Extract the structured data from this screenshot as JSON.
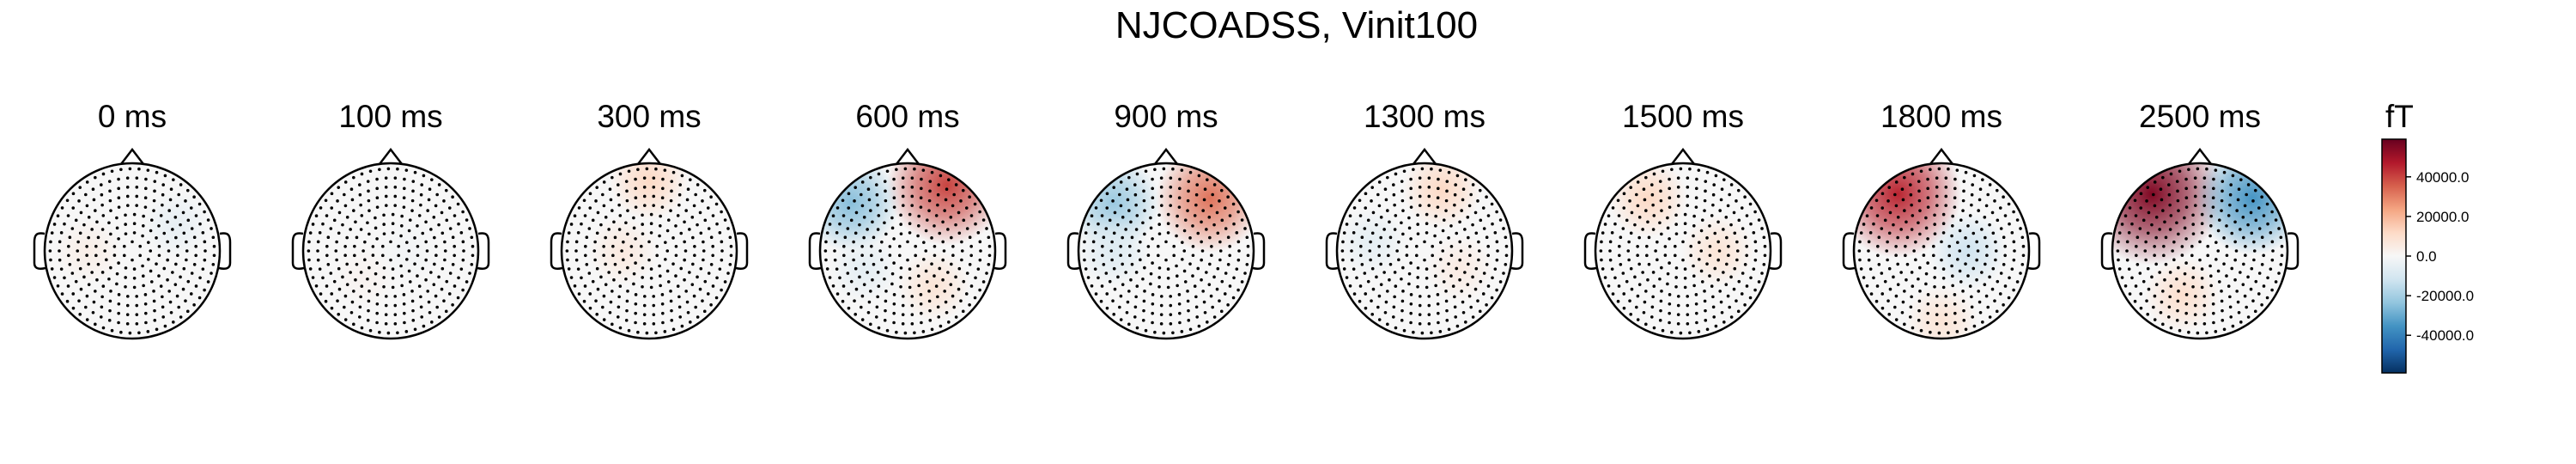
{
  "chart_data": {
    "type": "topomap",
    "title": "NJCOADSS, Vinit100",
    "maps": [
      {
        "label": "0 ms",
        "extrema": [
          {
            "x": 0.5,
            "y": 0.3,
            "value": -5000
          },
          {
            "x": -0.5,
            "y": 0.0,
            "value": 4000
          }
        ]
      },
      {
        "label": "100 ms",
        "extrema": [
          {
            "x": 0.2,
            "y": 0.0,
            "value": -2000
          },
          {
            "x": -0.3,
            "y": -0.3,
            "value": 2000
          }
        ]
      },
      {
        "label": "300 ms",
        "extrema": [
          {
            "x": 0.0,
            "y": 0.8,
            "value": 12000
          },
          {
            "x": -0.3,
            "y": 0.0,
            "value": 6000
          }
        ]
      },
      {
        "label": "600 ms",
        "extrema": [
          {
            "x": 0.45,
            "y": 0.75,
            "value": 40000
          },
          {
            "x": -0.65,
            "y": 0.55,
            "value": -25000
          },
          {
            "x": 0.3,
            "y": -0.4,
            "value": 8000
          },
          {
            "x": -0.5,
            "y": -0.2,
            "value": -6000
          }
        ]
      },
      {
        "label": "900 ms",
        "extrema": [
          {
            "x": 0.5,
            "y": 0.6,
            "value": 32000
          },
          {
            "x": -0.6,
            "y": 0.55,
            "value": -22000
          },
          {
            "x": -0.6,
            "y": 0.0,
            "value": -8000
          }
        ]
      },
      {
        "label": "1300 ms",
        "extrema": [
          {
            "x": 0.2,
            "y": 0.7,
            "value": 12000
          },
          {
            "x": -0.6,
            "y": 0.1,
            "value": -6000
          },
          {
            "x": 0.4,
            "y": -0.2,
            "value": 5000
          }
        ]
      },
      {
        "label": "1500 ms",
        "extrema": [
          {
            "x": -0.4,
            "y": 0.6,
            "value": 12000
          },
          {
            "x": 0.4,
            "y": 0.0,
            "value": 8000
          }
        ]
      },
      {
        "label": "1800 ms",
        "extrema": [
          {
            "x": -0.5,
            "y": 0.65,
            "value": 45000
          },
          {
            "x": 0.3,
            "y": 0.0,
            "value": -12000
          },
          {
            "x": 0.0,
            "y": -0.8,
            "value": 8000
          }
        ]
      },
      {
        "label": "2500 ms",
        "extrema": [
          {
            "x": -0.55,
            "y": 0.65,
            "value": 55000
          },
          {
            "x": 0.6,
            "y": 0.6,
            "value": -35000
          },
          {
            "x": -0.2,
            "y": -0.5,
            "value": 10000
          }
        ]
      }
    ],
    "colorbar": {
      "label": "fT",
      "clim": [
        -59000,
        59000
      ],
      "ticks": [
        {
          "value": 40000,
          "label": "40000.0"
        },
        {
          "value": 20000,
          "label": "20000.0"
        },
        {
          "value": 0,
          "label": "0.0"
        },
        {
          "value": -20000,
          "label": "-20000.0"
        },
        {
          "value": -40000,
          "label": "-40000.0"
        }
      ],
      "colormap": [
        "#053061",
        "#2166ac",
        "#4393c3",
        "#92c5de",
        "#d1e5f0",
        "#f7f7f7",
        "#fddbc7",
        "#f4a582",
        "#d6604d",
        "#b2182b",
        "#67001f"
      ]
    }
  }
}
